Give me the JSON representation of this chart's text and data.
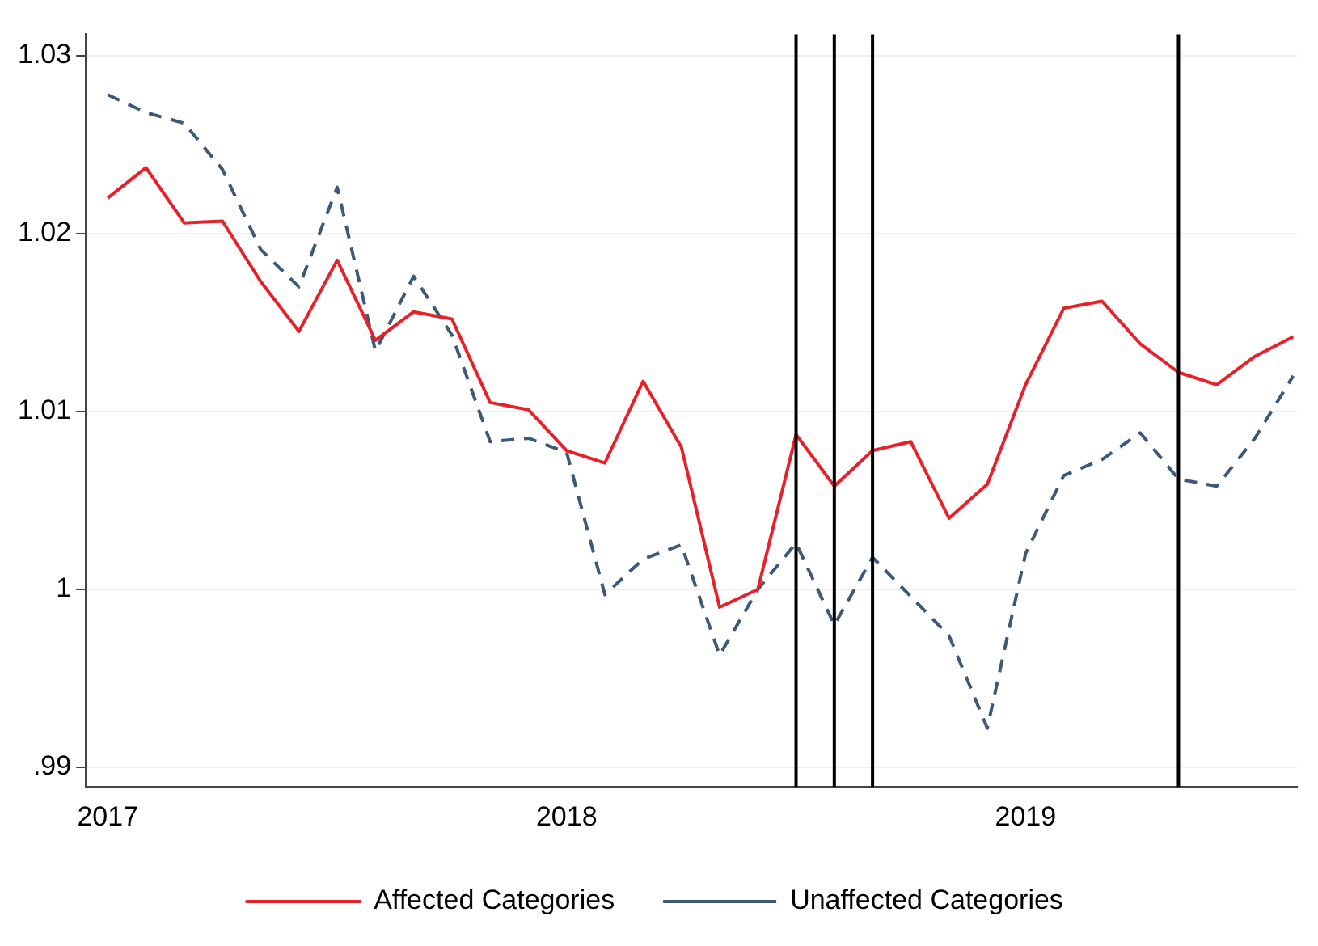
{
  "chart_data": {
    "type": "line",
    "x": [
      "2017-01",
      "2017-02",
      "2017-03",
      "2017-04",
      "2017-05",
      "2017-06",
      "2017-07",
      "2017-08",
      "2017-09",
      "2017-10",
      "2017-11",
      "2017-12",
      "2018-01",
      "2018-02",
      "2018-03",
      "2018-04",
      "2018-05",
      "2018-06",
      "2018-07",
      "2018-08",
      "2018-09",
      "2018-10",
      "2018-11",
      "2018-12",
      "2019-01",
      "2019-02",
      "2019-03",
      "2019-04",
      "2019-05",
      "2019-06",
      "2019-07",
      "2019-08"
    ],
    "series": [
      {
        "name": "Affected Categories",
        "color": "#e8202a",
        "line_style": "solid",
        "values": [
          1.022,
          1.0237,
          1.0206,
          1.0207,
          1.0173,
          1.0145,
          1.0185,
          1.014,
          1.0156,
          1.0152,
          1.0105,
          1.0101,
          1.0078,
          1.0071,
          1.0117,
          1.008,
          0.999,
          1.0,
          1.0087,
          1.0058,
          1.0078,
          1.0083,
          1.004,
          1.0059,
          1.0115,
          1.0158,
          1.0162,
          1.0138,
          1.0122,
          1.0115,
          1.0131,
          1.0142
        ]
      },
      {
        "name": "Unaffected Categories",
        "color": "#3c5a78",
        "line_style": "dashed",
        "values": [
          1.0278,
          1.0268,
          1.0262,
          1.0236,
          1.0191,
          1.017,
          1.0226,
          1.0134,
          1.0176,
          1.0143,
          1.0083,
          1.0085,
          1.0077,
          0.9997,
          1.0017,
          1.0025,
          0.9963,
          1.0,
          1.0026,
          0.998,
          1.0018,
          0.9996,
          0.9974,
          0.9922,
          1.002,
          1.0064,
          1.0073,
          1.0088,
          1.0062,
          1.0058,
          1.0085,
          1.012
        ]
      }
    ],
    "xlim": [
      "2016-12-14",
      "2019-08-04"
    ],
    "xticks": [
      "2017",
      "2018",
      "2019"
    ],
    "ylim": [
      0.9889,
      1.0312
    ],
    "yticks": [
      {
        "value": 0.99,
        "label": ".99"
      },
      1,
      1.01,
      1.02,
      1.03
    ],
    "ref_lines": [
      {
        "axis": "x",
        "value": "2018-07",
        "color": "#000000"
      },
      {
        "axis": "x",
        "value": "2018-08",
        "color": "#000000"
      },
      {
        "axis": "x",
        "value": "2018-09",
        "color": "#000000"
      },
      {
        "axis": "x",
        "value": "2019-05",
        "color": "#000000"
      }
    ],
    "grid": "y",
    "legend": "bottom",
    "marker": "none"
  }
}
